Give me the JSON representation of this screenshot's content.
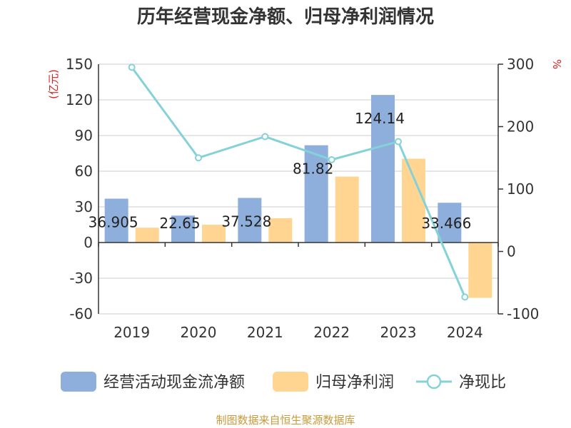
{
  "chart_data": {
    "type": "bar",
    "title": "历年经营现金净额、归母净利润情况",
    "categories": [
      "2019",
      "2020",
      "2021",
      "2022",
      "2023",
      "2024"
    ],
    "series": [
      {
        "name": "经营活动现金流净额",
        "type": "bar",
        "axis": "left",
        "color": "#8eaedb",
        "values": [
          36.905,
          22.65,
          37.528,
          81.82,
          124.14,
          33.466
        ]
      },
      {
        "name": "归母净利润",
        "type": "bar",
        "axis": "left",
        "color": "#ffd591",
        "values": [
          12.5,
          15.0,
          20.5,
          55.5,
          70.5,
          -46.5
        ]
      },
      {
        "name": "净现比",
        "type": "line",
        "axis": "right",
        "color": "#84d2d8",
        "values": [
          295,
          150,
          184,
          147,
          176,
          -73
        ]
      }
    ],
    "data_labels": [
      "36.905",
      "22.65",
      "37.528",
      "81.82",
      "124.14",
      "33.466"
    ],
    "left_axis": {
      "unit": "(亿元)",
      "ylim": [
        -60,
        150
      ],
      "ticks": [
        150,
        120,
        90,
        60,
        30,
        0,
        -30,
        -60
      ]
    },
    "right_axis": {
      "unit": "%",
      "ylim": [
        -100,
        300
      ],
      "ticks": [
        300,
        200,
        100,
        0,
        -100
      ]
    },
    "grid": true,
    "legend_position": "bottom"
  },
  "source": "制图数据来自恒生聚源数据库"
}
